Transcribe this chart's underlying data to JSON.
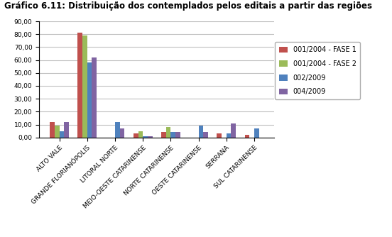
{
  "title": "Gráfico 6.11: Distribuição dos contemplados pelos editais a partir das regiões",
  "categories": [
    "ALTO VALE",
    "GRANDE FLORIANÓPOLIS",
    "LITORAL NORTE",
    "MEIO-OESTE CATARINENSE",
    "NORTE CATARINENSE",
    "OESTE CATARINENSE",
    "SERRANA",
    "SUL CATARINENSE"
  ],
  "series": [
    {
      "label": "001/2004 - FASE 1",
      "color": "#C0504D",
      "values": [
        12.0,
        81.0,
        0.0,
        3.0,
        4.0,
        0.0,
        3.0,
        2.0
      ]
    },
    {
      "label": "001/2004 - FASE 2",
      "color": "#9BBB59",
      "values": [
        9.0,
        79.0,
        0.0,
        5.0,
        8.0,
        0.0,
        0.0,
        0.0
      ]
    },
    {
      "label": "002/2009",
      "color": "#4F81BD",
      "values": [
        5.0,
        58.0,
        12.0,
        1.0,
        4.0,
        9.0,
        3.0,
        7.0
      ]
    },
    {
      "label": "004/2009",
      "color": "#8064A2",
      "values": [
        12.0,
        62.0,
        7.0,
        1.0,
        4.0,
        4.0,
        11.0,
        0.0
      ]
    }
  ],
  "ylim": [
    0,
    90
  ],
  "yticks": [
    0,
    10,
    20,
    30,
    40,
    50,
    60,
    70,
    80,
    90
  ],
  "ytick_labels": [
    "0,00",
    "10,00",
    "20,00",
    "30,00",
    "40,00",
    "50,00",
    "60,00",
    "70,00",
    "80,00",
    "90,00"
  ],
  "background_color": "#FFFFFF",
  "grid_color": "#C0C0C0",
  "bar_width": 0.17,
  "legend_fontsize": 7.0,
  "tick_fontsize": 6.5,
  "title_fontsize": 8.5
}
